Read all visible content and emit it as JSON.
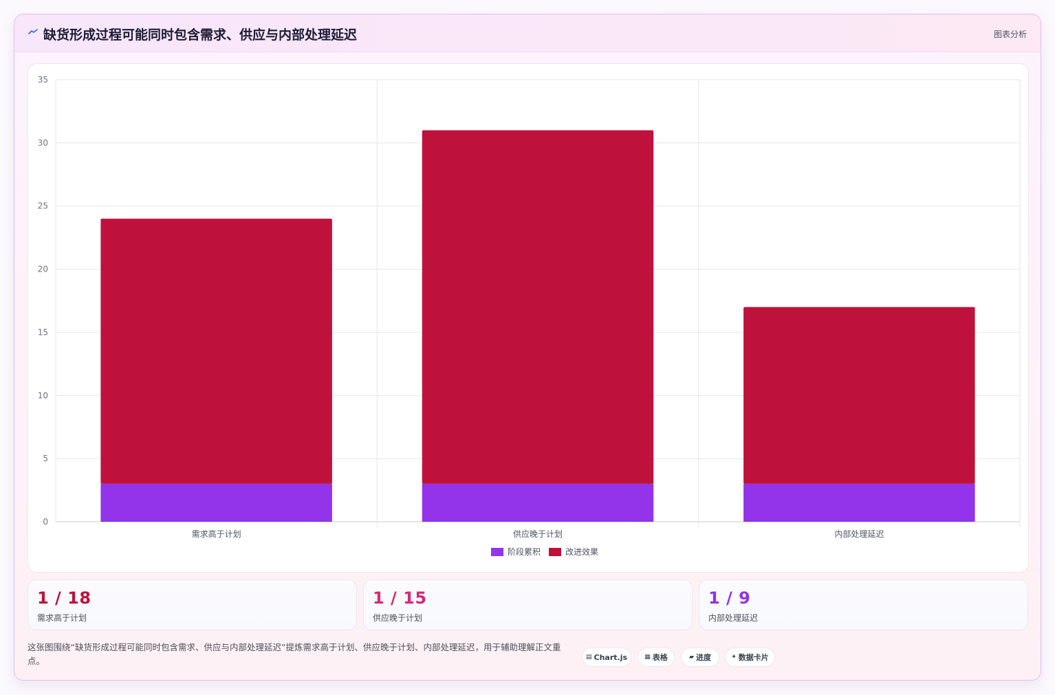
{
  "header": {
    "icon": "trend-line-icon",
    "title": "缺货形成过程可能同时包含需求、供应与内部处理延迟",
    "tag": "图表分析"
  },
  "chart_data": {
    "type": "bar",
    "stacked": true,
    "categories": [
      "需求高于计划",
      "供应晚于计划",
      "内部处理延迟"
    ],
    "series": [
      {
        "name": "阶段累积",
        "values": [
          3,
          3,
          3
        ],
        "color": "#9333ea"
      },
      {
        "name": "改进效果",
        "values": [
          21,
          28,
          14
        ],
        "color": "#be123c"
      }
    ],
    "ylim": [
      0,
      35
    ],
    "yticks": [
      0,
      5,
      10,
      15,
      20,
      25,
      30,
      35
    ],
    "grid": true,
    "legend": "bottom"
  },
  "stats": [
    {
      "value": "1 / 18",
      "label": "需求高于计划",
      "color": "#be123c"
    },
    {
      "value": "1 / 15",
      "label": "供应晚于计划",
      "color": "#db2777"
    },
    {
      "value": "1 / 9",
      "label": "内部处理延迟",
      "color": "#9333ea"
    }
  ],
  "footnote": "这张图围绕“缺货形成过程可能同时包含需求、供应与内部处理延迟”提炼需求高于计划、供应晚于计划、内部处理延迟，用于辅助理解正文重点。",
  "pills": [
    {
      "icon": "chart-icon",
      "glyph": "▤",
      "label": "Chart.js"
    },
    {
      "icon": "table-icon",
      "glyph": "▦",
      "label": "表格"
    },
    {
      "icon": "progress-icon",
      "glyph": "▰",
      "label": "进度"
    },
    {
      "icon": "sparkle-icon",
      "glyph": "✦",
      "label": "数据卡片"
    }
  ]
}
